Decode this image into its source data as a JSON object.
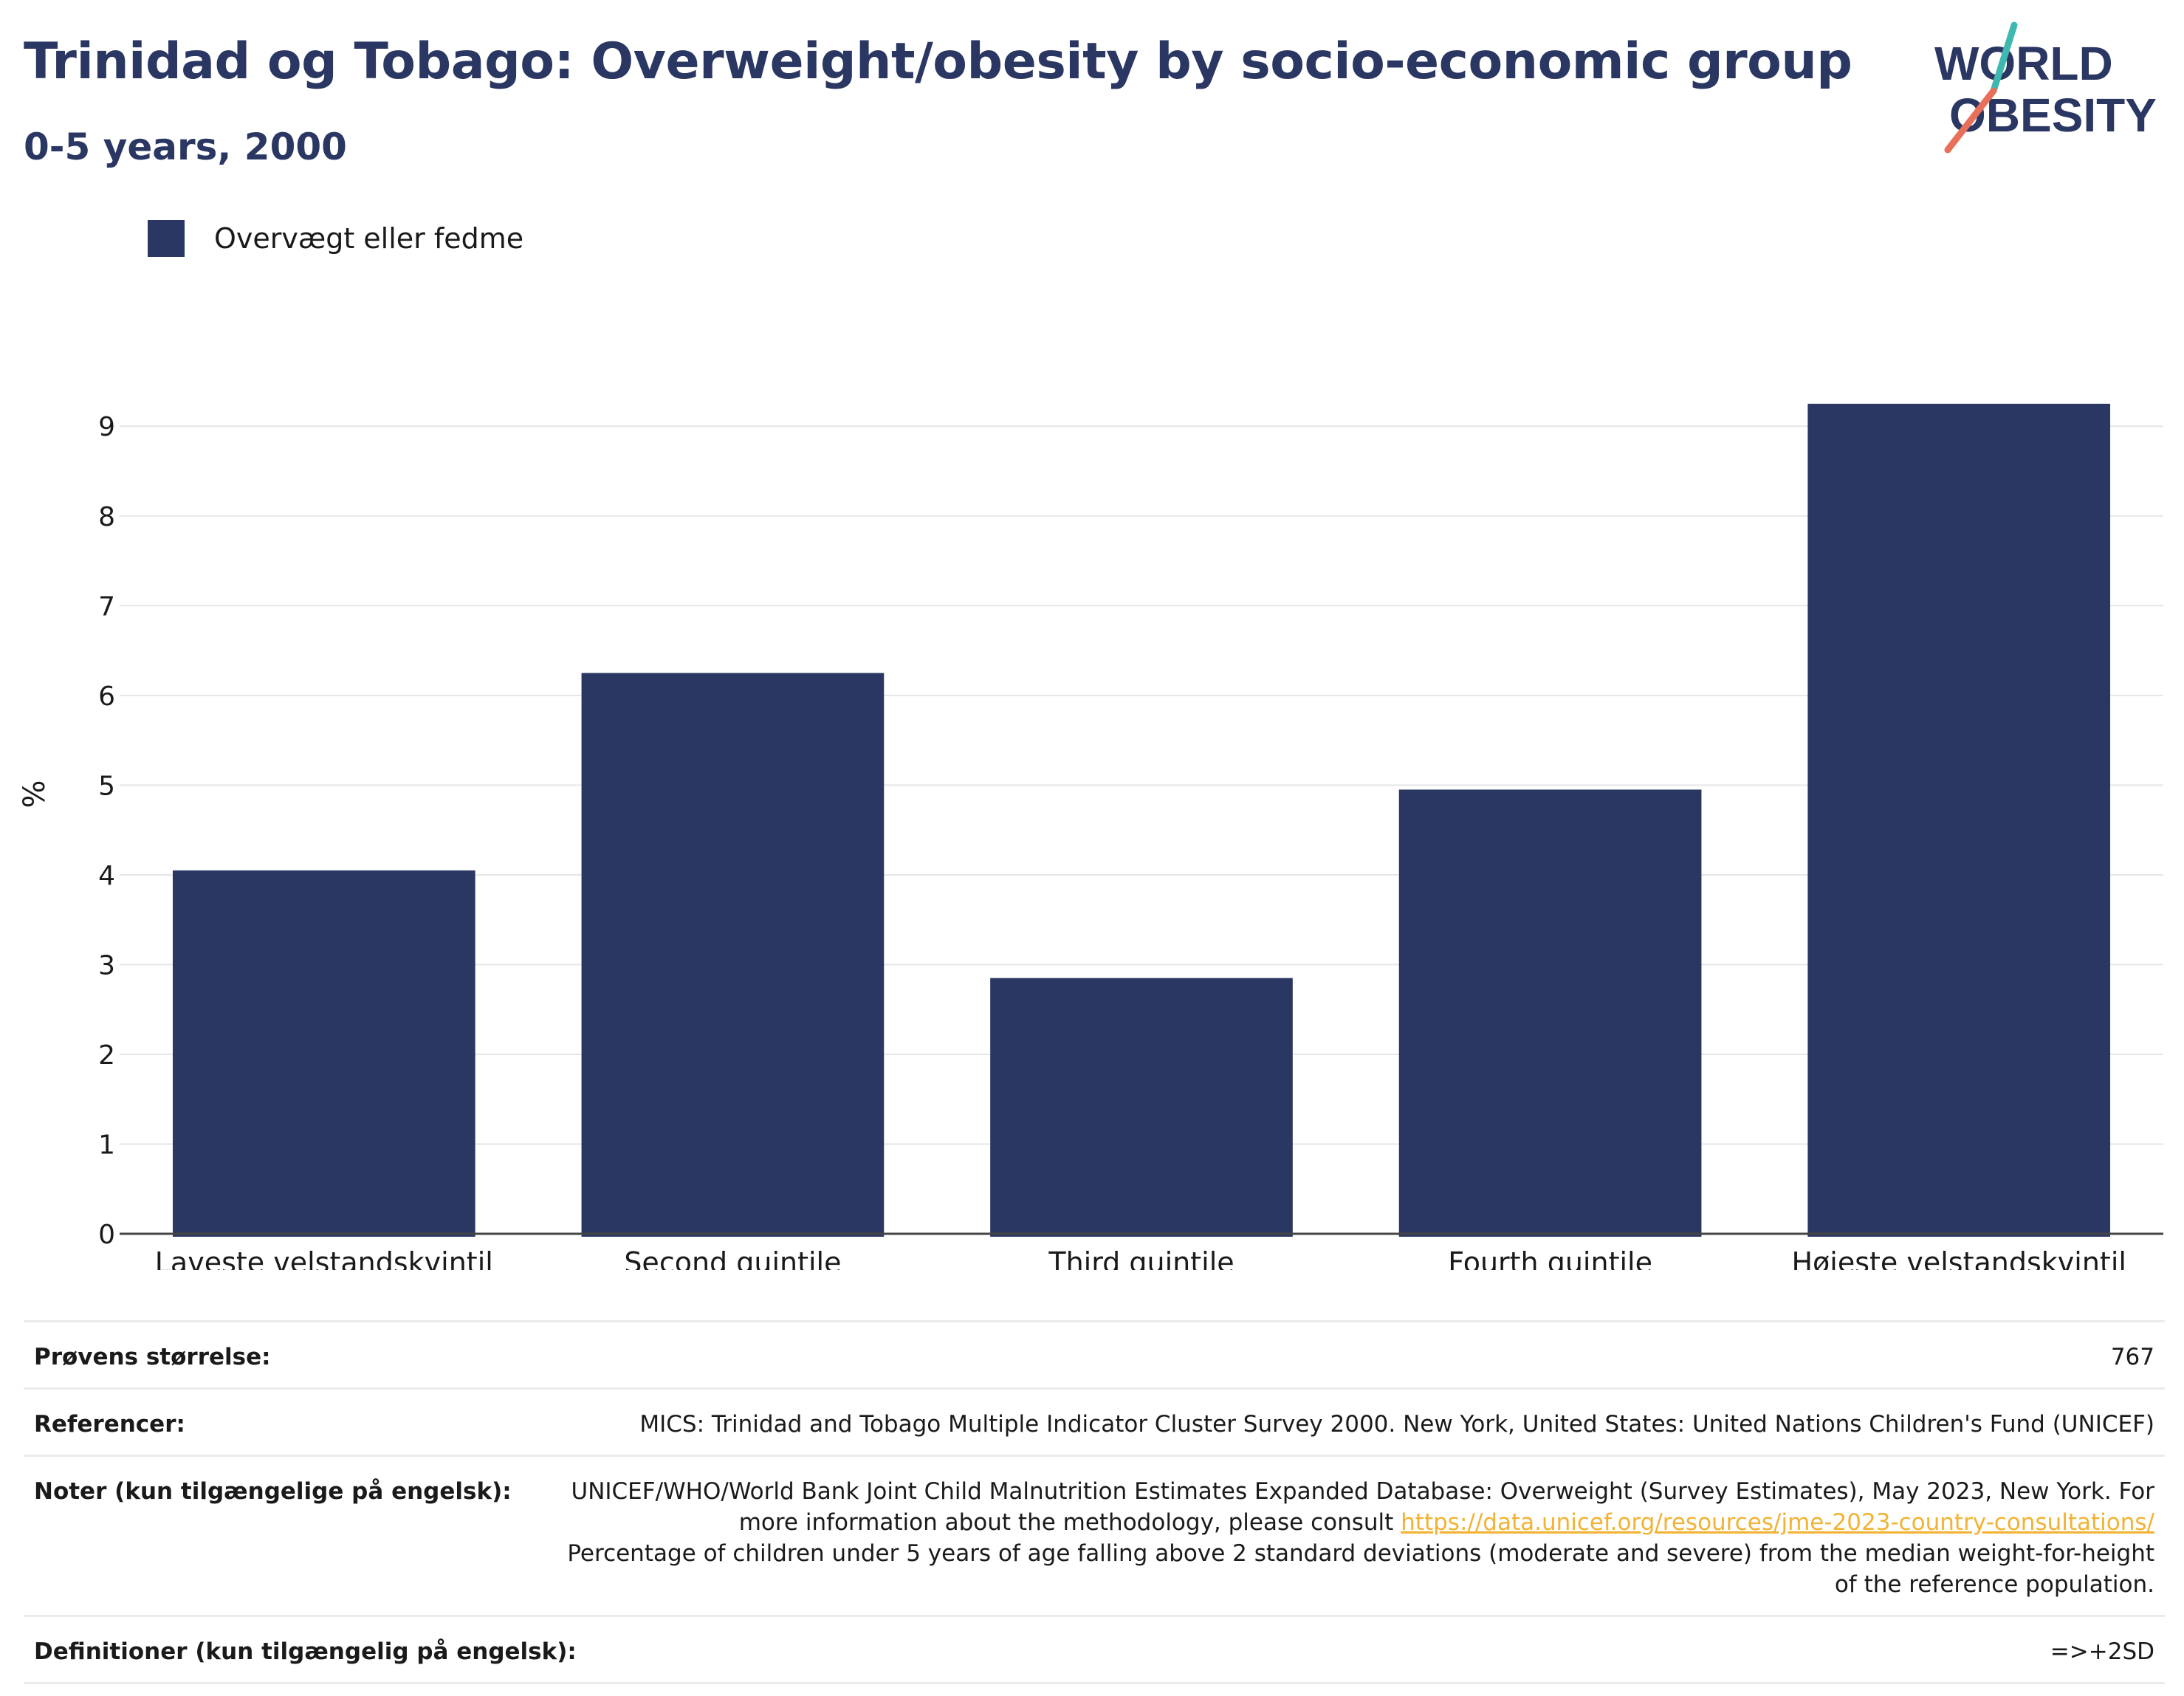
{
  "header": {
    "title": "Trinidad og Tobago: Overweight/obesity by socio-economic group",
    "subtitle": "0-5 years, 2000",
    "logo_text_line1": "WORLD",
    "logo_text_line2": "OBESITY"
  },
  "colors": {
    "bar": "#2b3763",
    "title": "#2b3763",
    "link": "#f2b233",
    "logo_teal": "#3fb8b0",
    "logo_coral": "#e8705a"
  },
  "legend": {
    "label": "Overvægt eller fedme"
  },
  "chart_data": {
    "type": "bar",
    "categories": [
      "Laveste velstandskvintil",
      "Second quintile",
      "Third quintile",
      "Fourth quintile",
      "Højeste velstandskvintil"
    ],
    "series": [
      {
        "name": "Overvægt eller fedme",
        "values": [
          4.05,
          6.25,
          2.85,
          4.95,
          9.25
        ]
      }
    ],
    "ylabel": "%",
    "xlabel": "",
    "ylim": [
      0,
      9.8
    ],
    "yticks": [
      0,
      1,
      2,
      3,
      4,
      5,
      6,
      7,
      8,
      9
    ],
    "grid": true,
    "legend_position": "top-left"
  },
  "info": {
    "sample_size_label": "Prøvens størrelse:",
    "sample_size_value": "767",
    "references_label": "Referencer:",
    "references_value": "MICS: Trinidad and Tobago Multiple Indicator Cluster Survey 2000. New York, United States: United Nations Children's Fund (UNICEF)",
    "notes_label": "Noter (kun tilgængelige på engelsk):",
    "notes_text_before_link": "UNICEF/WHO/World Bank Joint Child Malnutrition Estimates Expanded Database: Overweight (Survey Estimates), May 2023, New York. For more information about the methodology, please consult ",
    "notes_link": "https://data.unicef.org/resources/jme-2023-country-consultations/",
    "notes_text_after_link": "Percentage of children under 5 years of age falling above 2 standard deviations (moderate and severe) from the median weight-for-height of the reference population.",
    "definitions_label": "Definitioner (kun tilgængelig på engelsk):",
    "definitions_value": "=>+2SD"
  }
}
